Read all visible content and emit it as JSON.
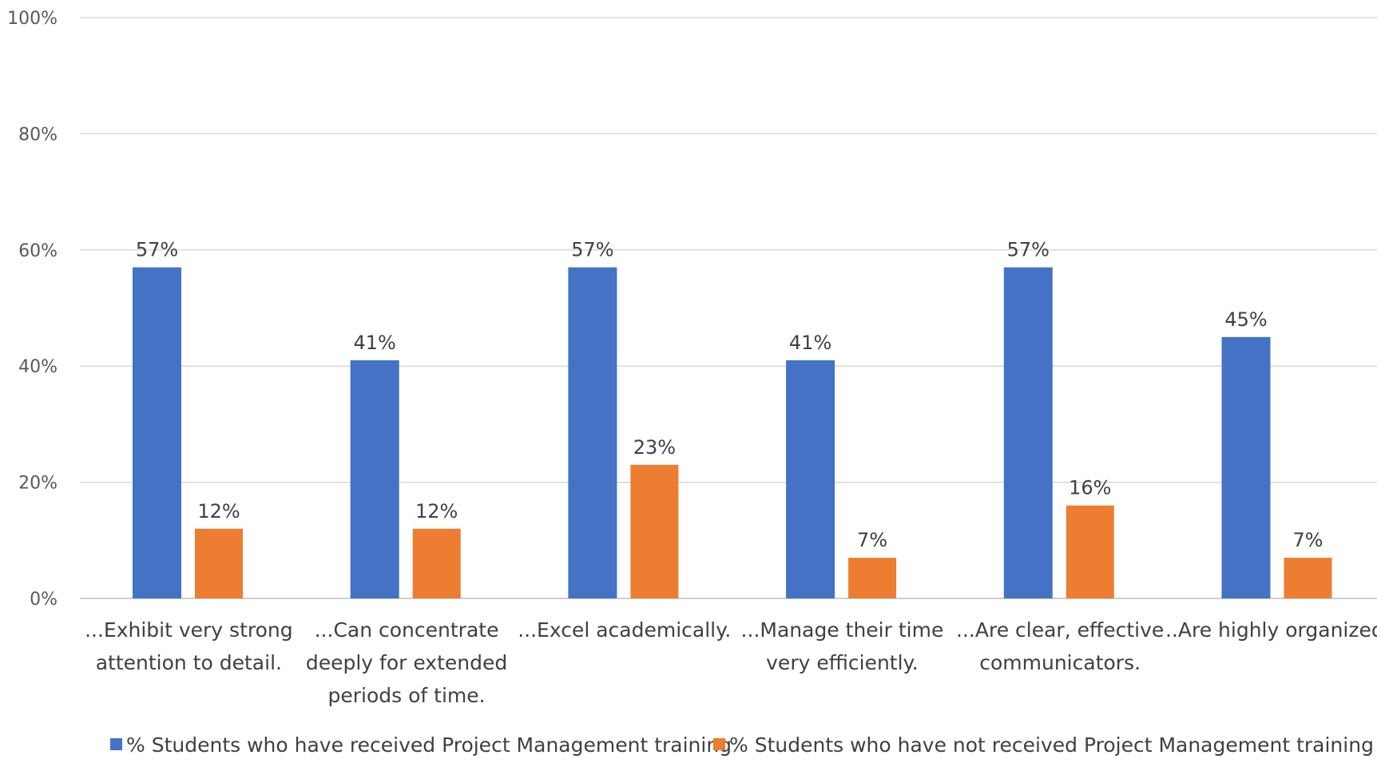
{
  "chart_data": {
    "type": "bar",
    "title": "",
    "xlabel": "",
    "ylabel": "",
    "ylim": [
      0,
      100
    ],
    "y_ticks": [
      "0%",
      "20%",
      "40%",
      "60%",
      "80%",
      "100%"
    ],
    "y_tick_values": [
      0,
      20,
      40,
      60,
      80,
      100
    ],
    "grid": true,
    "legend_position": "bottom",
    "categories": [
      [
        "...Exhibit very strong",
        "attention to detail."
      ],
      [
        "...Can concentrate",
        "deeply for extended",
        "periods of time."
      ],
      [
        "...Excel academically."
      ],
      [
        "...Manage their time",
        "very efficiently."
      ],
      [
        "...Are clear, effective",
        "communicators."
      ],
      [
        "..Are highly organized."
      ]
    ],
    "series": [
      {
        "name": "% Students who have received Project Management training",
        "color": "#4472c4",
        "values": [
          57,
          41,
          57,
          41,
          57,
          45
        ],
        "labels": [
          "57%",
          "41%",
          "57%",
          "41%",
          "57%",
          "45%"
        ]
      },
      {
        "name": "% Students who have not received Project Management training",
        "color": "#ed7d31",
        "values": [
          12,
          12,
          23,
          7,
          16,
          7
        ],
        "labels": [
          "12%",
          "12%",
          "23%",
          "7%",
          "16%",
          "7%"
        ]
      }
    ]
  }
}
